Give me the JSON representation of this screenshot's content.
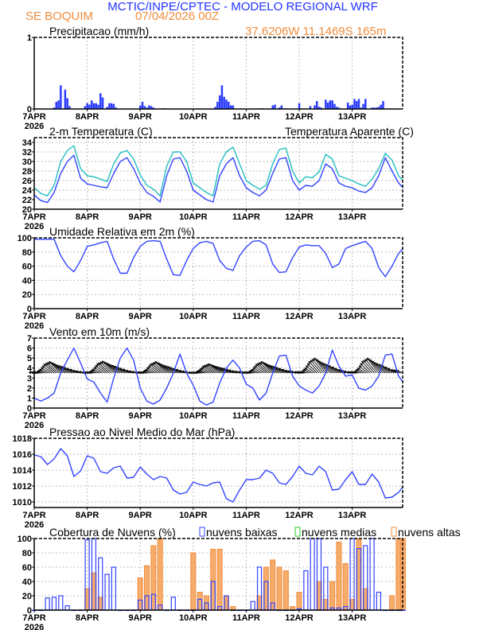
{
  "header": {
    "title": "MCTIC/INPE/CPTEC - MODELO REGIONAL WRF",
    "station": "SE BOQUIM",
    "run": "07/04/2026 00Z",
    "location": "37.6206W 11.1469S 165m"
  },
  "colors": {
    "title": "#2233ff",
    "station": "#f08c3c",
    "series_blue": "#3344ff",
    "series_cyan": "#22bfc0",
    "cloud_low": "#3344ff",
    "cloud_mid": "#22cc22",
    "cloud_high": "#f08c3c",
    "cloud_high_fill": "#f6ac6a",
    "grid": "#aaaaaa"
  },
  "x_axis": {
    "ticks": [
      "7APR",
      "8APR",
      "9APR",
      "10APR",
      "11APR",
      "12APR",
      "13APR"
    ],
    "year": "2026"
  },
  "times": [
    "7APR 00Z",
    "7APR 03Z",
    "7APR 06Z",
    "7APR 09Z",
    "7APR 12Z",
    "7APR 15Z",
    "7APR 18Z",
    "7APR 21Z",
    "8APR 00Z",
    "8APR 03Z",
    "8APR 06Z",
    "8APR 09Z",
    "8APR 12Z",
    "8APR 15Z",
    "8APR 18Z",
    "8APR 21Z",
    "9APR 00Z",
    "9APR 03Z",
    "9APR 06Z",
    "9APR 09Z",
    "9APR 12Z",
    "9APR 15Z",
    "9APR 18Z",
    "9APR 21Z",
    "10APR 00Z",
    "10APR 03Z",
    "10APR 06Z",
    "10APR 09Z",
    "10APR 12Z",
    "10APR 15Z",
    "10APR 18Z",
    "10APR 21Z",
    "11APR 00Z",
    "11APR 03Z",
    "11APR 06Z",
    "11APR 09Z",
    "11APR 12Z",
    "11APR 15Z",
    "11APR 18Z",
    "11APR 21Z",
    "12APR 00Z",
    "12APR 03Z",
    "12APR 06Z",
    "12APR 09Z",
    "12APR 12Z",
    "12APR 15Z",
    "12APR 18Z",
    "12APR 21Z",
    "13APR 00Z",
    "13APR 03Z",
    "13APR 06Z",
    "13APR 09Z",
    "13APR 12Z",
    "13APR 15Z",
    "13APR 18Z",
    "13APR 21Z",
    "13APR 23Z"
  ],
  "chart_data": [
    {
      "type": "bar",
      "title": "Precipitacao (mm/h)",
      "ylim": [
        0,
        1
      ],
      "yticks": [
        "0",
        "1"
      ],
      "grid": "vertical dotted",
      "series": [
        {
          "color": "#2b3cff",
          "points": [
            [
              "7APR 09Z",
              0.02
            ],
            [
              "7APR 10Z",
              0.1
            ],
            [
              "7APR 11Z",
              0.12
            ],
            [
              "7APR 12Z",
              0.33
            ],
            [
              "7APR 14Z",
              0.27
            ],
            [
              "7APR 15Z",
              0.15
            ],
            [
              "7APR 16Z",
              0.04
            ],
            [
              "7APR 23Z",
              0.04
            ],
            [
              "8APR 00Z",
              0.08
            ],
            [
              "8APR 01Z",
              0.06
            ],
            [
              "8APR 02Z",
              0.12
            ],
            [
              "8APR 03Z",
              0.08
            ],
            [
              "8APR 04Z",
              0.08
            ],
            [
              "8APR 05Z",
              0.06
            ],
            [
              "8APR 06Z",
              0.22
            ],
            [
              "8APR 07Z",
              0.16
            ],
            [
              "8APR 09Z",
              0.03
            ],
            [
              "8APR 10Z",
              0.08
            ],
            [
              "8APR 11Z",
              0.08
            ],
            [
              "8APR 12Z",
              0.07
            ],
            [
              "8APR 13Z",
              0.02
            ],
            [
              "9APR 00Z",
              0.05
            ],
            [
              "9APR 01Z",
              0.1
            ],
            [
              "9APR 02Z",
              0.04
            ],
            [
              "9APR 03Z",
              0.02
            ],
            [
              "9APR 04Z",
              0.05
            ],
            [
              "9APR 05Z",
              0.04
            ],
            [
              "9APR 06Z",
              0.02
            ],
            [
              "9APR 11Z",
              0.01
            ],
            [
              "10APR 10Z",
              0.03
            ],
            [
              "10APR 11Z",
              0.1
            ],
            [
              "10APR 12Z",
              0.19
            ],
            [
              "10APR 13Z",
              0.33
            ],
            [
              "10APR 14Z",
              0.17
            ],
            [
              "10APR 15Z",
              0.13
            ],
            [
              "10APR 16Z",
              0.1
            ],
            [
              "10APR 17Z",
              0.05
            ],
            [
              "10APR 18Z",
              0.05
            ],
            [
              "11APR 07Z",
              0.01
            ],
            [
              "11APR 12Z",
              0.05
            ],
            [
              "11APR 13Z",
              0.06
            ],
            [
              "11APR 15Z",
              0.02
            ],
            [
              "11APR 16Z",
              0.05
            ],
            [
              "11APR 18Z",
              0.01
            ],
            [
              "12APR 00Z",
              0.08
            ],
            [
              "12APR 05Z",
              0.04
            ],
            [
              "12APR 07Z",
              0.05
            ],
            [
              "12APR 08Z",
              0.11
            ],
            [
              "12APR 09Z",
              0.03
            ],
            [
              "12APR 10Z",
              0.02
            ],
            [
              "12APR 12Z",
              0.13
            ],
            [
              "12APR 13Z",
              0.09
            ],
            [
              "12APR 14Z",
              0.12
            ],
            [
              "12APR 15Z",
              0.12
            ],
            [
              "12APR 16Z",
              0.07
            ],
            [
              "12APR 17Z",
              0.03
            ],
            [
              "12APR 18Z",
              0.02
            ],
            [
              "12APR 22Z",
              0.09
            ],
            [
              "12APR 23Z",
              0.05
            ],
            [
              "13APR 00Z",
              0.06
            ],
            [
              "13APR 01Z",
              0.14
            ],
            [
              "13APR 02Z",
              0.11
            ],
            [
              "13APR 03Z",
              0.14
            ],
            [
              "13APR 04Z",
              0.02
            ],
            [
              "13APR 05Z",
              0.07
            ],
            [
              "13APR 06Z",
              0.14
            ],
            [
              "13APR 09Z",
              0.02
            ],
            [
              "13APR 10Z",
              0.02
            ],
            [
              "13APR 11Z",
              0.02
            ],
            [
              "13APR 12Z",
              0.03
            ],
            [
              "13APR 13Z",
              0.06
            ],
            [
              "13APR 14Z",
              0.11
            ]
          ]
        }
      ]
    },
    {
      "type": "line",
      "title": "2-m Temperatura (C)",
      "ylim": [
        20,
        35
      ],
      "yticks": [
        "20",
        "22",
        "24",
        "26",
        "28",
        "30",
        "32",
        "34"
      ],
      "grid": "dotted",
      "series": [
        {
          "color": "#3344ff",
          "values": [
            23,
            21.8,
            21.4,
            23.5,
            27.5,
            30,
            31.3,
            26.5,
            25.3,
            25,
            24.7,
            24.5,
            27.5,
            30,
            30.8,
            28.5,
            25.5,
            23.5,
            22.7,
            21.5,
            27,
            30.5,
            30.8,
            28,
            24,
            23,
            22,
            21.5,
            27,
            29.5,
            30.8,
            27,
            24.5,
            23.5,
            22.8,
            24,
            27.5,
            30.5,
            30.8,
            26,
            24,
            25,
            24.8,
            26,
            29.5,
            28.5,
            25.5,
            24.8,
            24.5,
            23.8,
            23.5,
            24.5,
            27,
            30.8,
            28,
            25.5,
            24.5
          ]
        },
        {
          "name": "Temperatura Aparente (C)",
          "color": "#22bfc0",
          "values": [
            24.5,
            23.3,
            22.8,
            25,
            30,
            32.3,
            33.3,
            28.5,
            27,
            26.8,
            26.3,
            25.8,
            29.5,
            31.8,
            32.3,
            30.5,
            27.2,
            25,
            24.2,
            22.8,
            29,
            32,
            32,
            30,
            25.5,
            24.5,
            23.5,
            22.8,
            29.5,
            32,
            33,
            29.5,
            26,
            25,
            24.2,
            25,
            29.5,
            32.5,
            32.8,
            28,
            25.5,
            26.8,
            26.6,
            27.8,
            31.5,
            30.5,
            27,
            26.5,
            26,
            25.3,
            24.8,
            26.3,
            28.5,
            31.7,
            30.3,
            27,
            26
          ]
        }
      ]
    },
    {
      "type": "line",
      "title": "Umidade Relativa em 2m (%)",
      "ylim": [
        0,
        100
      ],
      "yticks": [
        "0",
        "20",
        "40",
        "60",
        "80",
        "100"
      ],
      "grid": "dotted",
      "series": [
        {
          "color": "#3344ff",
          "values": [
            98,
            98,
            98,
            98,
            75,
            60,
            52,
            68,
            88,
            90,
            93,
            95,
            70,
            50,
            50,
            72,
            88,
            95,
            96,
            95,
            70,
            48,
            47,
            68,
            85,
            93,
            95,
            92,
            68,
            57,
            54,
            75,
            87,
            95,
            96,
            90,
            63,
            51,
            52,
            72,
            87,
            90,
            89,
            89,
            78,
            58,
            63,
            85,
            89,
            92,
            95,
            85,
            58,
            45,
            60,
            78,
            85
          ]
        }
      ]
    },
    {
      "type": "line",
      "title": "Vento em 10m (m/s)",
      "ylim": [
        0,
        7
      ],
      "yticks": [
        "0",
        "1",
        "2",
        "3",
        "4",
        "5",
        "6",
        "7"
      ],
      "grid": "dotted",
      "series": [
        {
          "color": "#3344ff",
          "values": [
            1,
            0.7,
            1,
            1.5,
            3.5,
            4.8,
            6,
            4.5,
            2.9,
            2.6,
            1.5,
            0.6,
            3,
            5,
            6,
            4.8,
            2,
            0.7,
            0.4,
            0.8,
            2,
            3.5,
            5.4,
            3.5,
            2.3,
            0.7,
            0.3,
            0.6,
            2.5,
            4,
            4.8,
            4,
            2.4,
            2,
            0.8,
            1.5,
            3.5,
            5.2,
            5.3,
            3.2,
            2.2,
            1.8,
            1.5,
            2.2,
            3.5,
            5.8,
            4.2,
            3.2,
            3.3,
            2,
            1.8,
            2.2,
            3.2,
            5.3,
            5.4,
            3.2,
            2.6
          ]
        }
      ],
      "vectors": {
        "u": [
          -2,
          -2,
          -3,
          -4,
          -4.5,
          -4.5,
          -4,
          -3,
          -2,
          -2,
          -3,
          -4,
          -4.5,
          -4.5,
          -4,
          -3,
          -2,
          -2,
          -3,
          -4,
          -4.5,
          -4.5,
          -4,
          -3,
          -2,
          -2,
          -3,
          -4,
          -4.5,
          -4.5,
          -4,
          -3,
          -2,
          -2,
          -3,
          -4,
          -4.5,
          -4.5,
          -4,
          -3,
          -2,
          -2,
          -3,
          -4,
          -4.5,
          -4.5,
          -4,
          -3,
          -2,
          -2,
          -3,
          -4,
          -4.5,
          -4.5,
          -4,
          -3,
          -2.5
        ],
        "v": [
          0.3,
          0.3,
          1.5,
          3.5,
          4.5,
          3.2,
          2.2,
          1,
          0.3,
          0.3,
          1.6,
          3.7,
          4.7,
          3.4,
          2.3,
          1,
          0.3,
          0.3,
          1.5,
          3.5,
          4.5,
          3.2,
          2.2,
          1,
          0.2,
          0.2,
          1.2,
          2.8,
          3.6,
          2.6,
          1.8,
          0.8,
          0.3,
          0.3,
          1.5,
          3.5,
          4.5,
          3.2,
          2.2,
          1,
          0.4,
          0.4,
          2,
          4.6,
          5.9,
          4.2,
          2.9,
          1.3,
          0.4,
          0.4,
          2,
          4.6,
          5.9,
          4.2,
          2.9,
          1.3,
          1
        ]
      }
    },
    {
      "type": "line",
      "title": "Pressao ao Nivel Medio do Mar (hPa)",
      "ylim": [
        1009.3,
        1018
      ],
      "yticks": [
        "1010",
        "1012",
        "1014",
        "1016",
        "1018"
      ],
      "grid": "dotted",
      "series": [
        {
          "color": "#3344ff",
          "values": [
            1015.9,
            1015.7,
            1014.7,
            1015.4,
            1016.7,
            1015.8,
            1013.2,
            1013.9,
            1015.8,
            1015.5,
            1013.8,
            1013.6,
            1014.3,
            1014.5,
            1013,
            1013.1,
            1014.4,
            1013.5,
            1012.8,
            1013.2,
            1013,
            1011.5,
            1011,
            1011.2,
            1012.5,
            1012.2,
            1012,
            1012.4,
            1012.5,
            1010.4,
            1010,
            1011.5,
            1012.8,
            1012.8,
            1013,
            1014,
            1013.6,
            1012.4,
            1012.2,
            1013.2,
            1014.5,
            1013.6,
            1013.4,
            1014.5,
            1013.8,
            1011.5,
            1011.6,
            1012.8,
            1013.8,
            1012.2,
            1012.2,
            1013.5,
            1012.5,
            1010.5,
            1010.6,
            1011.2,
            1011.9
          ]
        }
      ]
    },
    {
      "type": "bar",
      "title": "Cobertura de Nuvens (%)",
      "ylim": [
        0,
        100
      ],
      "yticks": [
        "0",
        "20",
        "40",
        "60",
        "80",
        "100"
      ],
      "grid": "dotted",
      "legend": "top",
      "series": [
        {
          "name": "nuvens baixas",
          "color": "#3344ff",
          "values": [
            0,
            0,
            17,
            18,
            20,
            6,
            0,
            0,
            98,
            100,
            73,
            50,
            60,
            0,
            0,
            0,
            14,
            20,
            22,
            7,
            0,
            18,
            0,
            0,
            0,
            15,
            10,
            40,
            5,
            20,
            0,
            0,
            0,
            12,
            60,
            40,
            10,
            0,
            0,
            0,
            2,
            55,
            100,
            100,
            60,
            3,
            3,
            5,
            100,
            86,
            90,
            100,
            25,
            0,
            0,
            0,
            0
          ]
        },
        {
          "name": "nuvens medias",
          "color": "#22cc22",
          "values": []
        },
        {
          "name": "nuvens altas",
          "color": "#f08c3c",
          "values": [
            0,
            0,
            0,
            0,
            0,
            0,
            0,
            0,
            30,
            52,
            18,
            0,
            0,
            0,
            0,
            0,
            45,
            62,
            90,
            100,
            0,
            0,
            0,
            0,
            80,
            25,
            20,
            85,
            85,
            20,
            5,
            0,
            0,
            0,
            20,
            60,
            70,
            60,
            55,
            5,
            25,
            0,
            0,
            40,
            15,
            40,
            95,
            65,
            15,
            100,
            30,
            0,
            0,
            0,
            20,
            100,
            100
          ]
        }
      ]
    }
  ]
}
